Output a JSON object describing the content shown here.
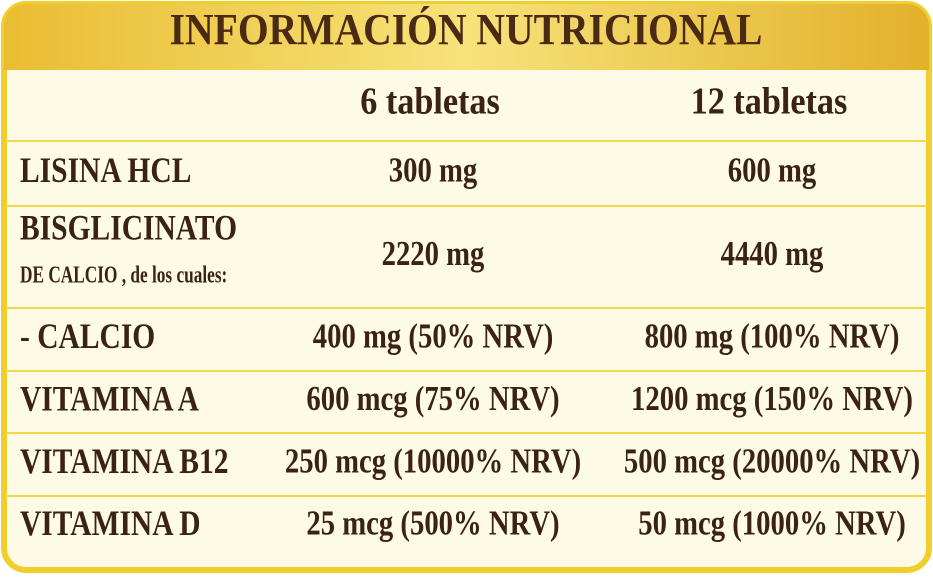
{
  "title": "INFORMACIÓN NUTRICIONAL",
  "table": {
    "columns": [
      "6 tabletas",
      "12 tabletas"
    ],
    "rows": [
      {
        "label": "LISINA HCL",
        "values": [
          "300 mg",
          "600 mg"
        ]
      },
      {
        "label": "BISGLICINATO",
        "note": "DE CALCIO , de los cuales:",
        "values": [
          "2220 mg",
          "4440 mg"
        ]
      },
      {
        "label": "- CALCIO",
        "values": [
          "400 mg (50% NRV)",
          "800 mg (100% NRV)"
        ]
      },
      {
        "label": "VITAMINA A",
        "values": [
          "600 mcg (75% NRV)",
          "1200 mcg (150% NRV)"
        ]
      },
      {
        "label": "VITAMINA B12",
        "values": [
          "250 mcg (10000% NRV)",
          "500 mcg (20000% NRV)"
        ]
      },
      {
        "label": "VITAMINA D",
        "values": [
          "25 mcg (500% NRV)",
          "50 mcg (1000% NRV)"
        ]
      }
    ]
  }
}
